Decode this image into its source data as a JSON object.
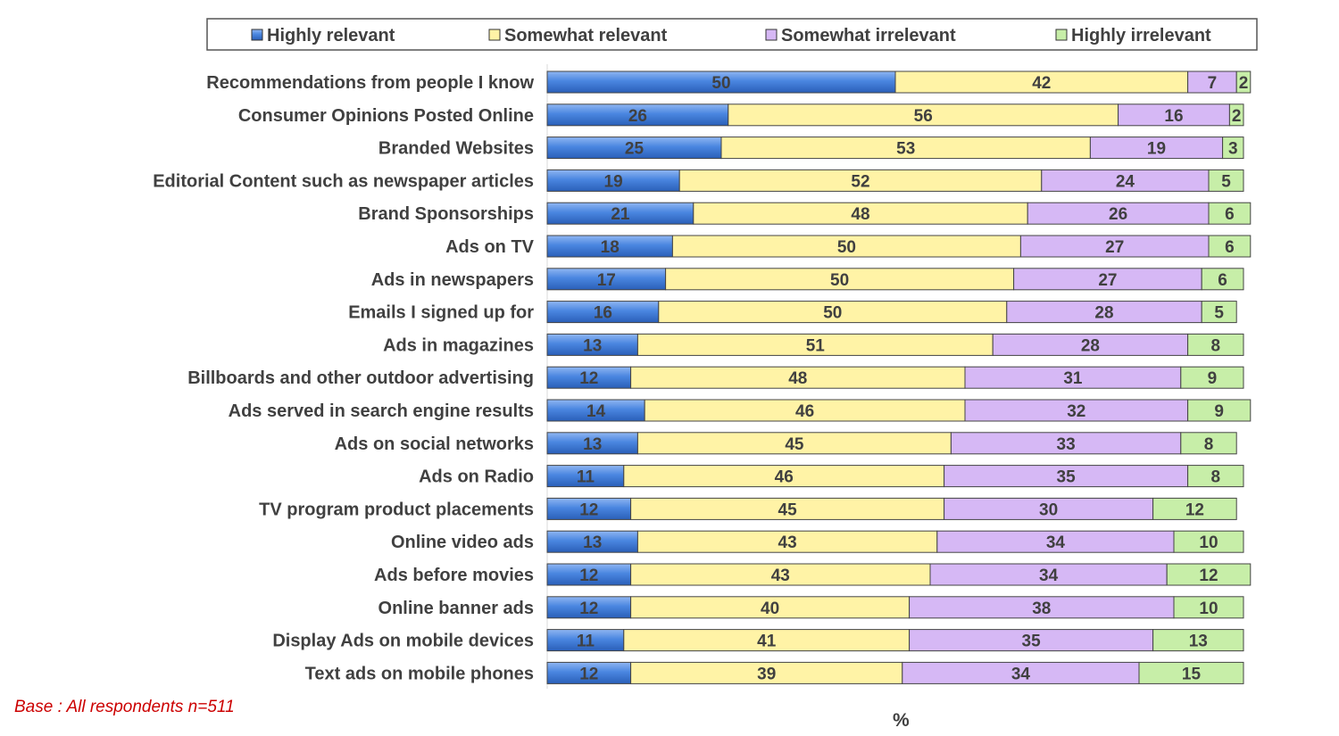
{
  "chart_data": {
    "type": "bar",
    "orientation": "horizontal",
    "stacked": true,
    "categories": [
      "Recommendations from people I know",
      "Consumer Opinions Posted Online",
      "Branded Websites",
      "Editorial Content such as newspaper articles",
      "Brand Sponsorships",
      "Ads on TV",
      "Ads in newspapers",
      "Emails I signed up for",
      "Ads in magazines",
      "Billboards and other outdoor advertising",
      "Ads served in search engine results",
      "Ads on social networks",
      "Ads on Radio",
      "TV program product placements",
      "Online video ads",
      "Ads before movies",
      "Online banner ads",
      "Display Ads on mobile devices",
      "Text ads on mobile phones"
    ],
    "series": [
      {
        "name": "Highly relevant",
        "color": "#4a86e0",
        "values": [
          50,
          26,
          25,
          19,
          21,
          18,
          17,
          16,
          13,
          12,
          14,
          13,
          11,
          12,
          13,
          12,
          12,
          11,
          12
        ]
      },
      {
        "name": "Somewhat relevant",
        "color": "#fff3a6",
        "values": [
          42,
          56,
          53,
          52,
          48,
          50,
          50,
          50,
          51,
          48,
          46,
          45,
          46,
          45,
          43,
          43,
          40,
          41,
          39
        ]
      },
      {
        "name": "Somewhat irrelevant",
        "color": "#d6b8f5",
        "values": [
          7,
          16,
          19,
          24,
          26,
          27,
          27,
          28,
          28,
          31,
          32,
          33,
          35,
          30,
          34,
          34,
          38,
          35,
          34
        ]
      },
      {
        "name": "Highly irrelevant",
        "color": "#c7eea8",
        "values": [
          2,
          2,
          3,
          5,
          6,
          6,
          6,
          5,
          8,
          9,
          9,
          8,
          8,
          12,
          10,
          12,
          10,
          13,
          15
        ]
      }
    ],
    "xlim": [
      0,
      100
    ],
    "xlabel": "%",
    "legend_position": "top",
    "data_labels": true,
    "grid": false
  },
  "footnote": "Base : All respondents n=511"
}
